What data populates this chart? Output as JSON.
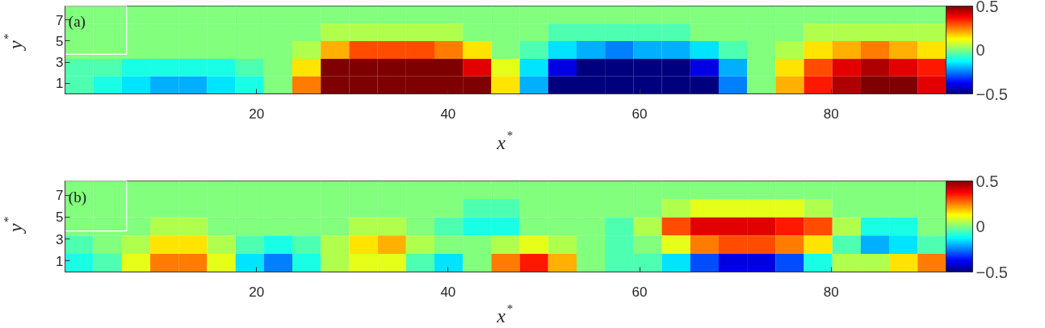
{
  "chart_data": [
    {
      "type": "heatmap",
      "xlabel": "x$^{*}$",
      "ylabel": "y$^{*}$",
      "annotations": [
        "(a)"
      ],
      "xlim": [
        0,
        92
      ],
      "ylim": [
        0,
        8.3
      ],
      "xticks": [
        20,
        40,
        60,
        80
      ],
      "yticks": [
        1,
        3,
        5,
        7
      ],
      "clim": [
        -0.5,
        0.5
      ],
      "cticks": [
        -0.5,
        0,
        0.5
      ],
      "grid": false,
      "cells": [
        [
          0,
          0,
          0,
          0,
          0,
          0,
          0,
          0,
          0,
          0,
          0,
          0,
          0,
          0,
          0,
          0,
          0,
          0,
          0,
          0,
          0,
          0,
          0,
          0,
          0,
          0,
          0,
          0,
          0,
          0,
          0
        ],
        [
          0,
          0,
          0,
          0,
          0,
          0,
          0,
          0,
          0,
          0.05,
          0.05,
          0.05,
          0.05,
          0.05,
          0,
          0,
          0,
          -0.05,
          -0.05,
          -0.05,
          -0.05,
          -0.05,
          0,
          0,
          0,
          0,
          0.05,
          0.05,
          0.05,
          0.05,
          0.05
        ],
        [
          0,
          0,
          0,
          0,
          0,
          0,
          0,
          0,
          0.05,
          0.2,
          0.3,
          0.3,
          0.3,
          0.25,
          0.15,
          0,
          -0.05,
          -0.15,
          -0.2,
          -0.25,
          -0.2,
          -0.2,
          -0.15,
          -0.05,
          0,
          0.05,
          0.15,
          0.2,
          0.25,
          0.2,
          0.15
        ],
        [
          -0.05,
          -0.05,
          -0.1,
          -0.1,
          -0.1,
          -0.1,
          -0.05,
          0,
          0.15,
          0.5,
          0.6,
          0.65,
          0.6,
          0.55,
          0.4,
          0.1,
          -0.15,
          -0.4,
          -0.55,
          -0.6,
          -0.55,
          -0.5,
          -0.4,
          -0.2,
          0,
          0.15,
          0.3,
          0.4,
          0.45,
          0.4,
          0.35
        ],
        [
          -0.05,
          -0.1,
          -0.15,
          -0.2,
          -0.2,
          -0.15,
          -0.1,
          0,
          0.25,
          0.6,
          0.7,
          0.7,
          0.7,
          0.7,
          0.5,
          0.15,
          -0.2,
          -0.5,
          -0.65,
          -0.65,
          -0.65,
          -0.6,
          -0.5,
          -0.25,
          0,
          0.2,
          0.35,
          0.45,
          0.5,
          0.5,
          0.4
        ]
      ]
    },
    {
      "type": "heatmap",
      "xlabel": "x$^{*}$",
      "ylabel": "y$^{*}$",
      "annotations": [
        "(b)"
      ],
      "xlim": [
        0,
        92
      ],
      "ylim": [
        0,
        8.3
      ],
      "xticks": [
        20,
        40,
        60,
        80
      ],
      "yticks": [
        1,
        3,
        5,
        7
      ],
      "clim": [
        -0.5,
        0.5
      ],
      "cticks": [
        -0.5,
        0,
        0.5
      ],
      "grid": false,
      "cells": [
        [
          0,
          0,
          0,
          0,
          0,
          0,
          0,
          0,
          0,
          0,
          0,
          0,
          0,
          0,
          0,
          0,
          0,
          0,
          0,
          0,
          0,
          0,
          0,
          0,
          0,
          0,
          0,
          0,
          0,
          0,
          0
        ],
        [
          0,
          0,
          0,
          0,
          0,
          0,
          0,
          0,
          0,
          0,
          0,
          0,
          0,
          0,
          -0.05,
          -0.05,
          0,
          0,
          0,
          0,
          0,
          0.05,
          0.1,
          0.1,
          0.1,
          0.1,
          0.05,
          0,
          0,
          0,
          0
        ],
        [
          0,
          0,
          0,
          0.05,
          0.05,
          0,
          0,
          0,
          0,
          0,
          0.05,
          0.05,
          0,
          -0.05,
          -0.1,
          -0.1,
          0,
          0,
          0,
          -0.05,
          0.05,
          0.3,
          0.4,
          0.4,
          0.4,
          0.35,
          0.3,
          0.05,
          -0.1,
          -0.1,
          0
        ],
        [
          -0.05,
          0,
          0.05,
          0.15,
          0.15,
          0.05,
          -0.05,
          -0.1,
          -0.05,
          0.05,
          0.15,
          0.2,
          0.05,
          0,
          0,
          0.05,
          0.1,
          0.05,
          0,
          -0.05,
          0,
          0.1,
          0.25,
          0.3,
          0.3,
          0.25,
          0.15,
          -0.05,
          -0.2,
          -0.15,
          -0.05
        ],
        [
          -0.1,
          -0.05,
          0.1,
          0.25,
          0.25,
          0.1,
          -0.15,
          -0.25,
          -0.1,
          0.05,
          0.1,
          0.1,
          -0.05,
          -0.15,
          0,
          0.25,
          0.35,
          0.2,
          0,
          -0.05,
          -0.05,
          -0.15,
          -0.3,
          -0.4,
          -0.4,
          -0.3,
          -0.1,
          0.05,
          0.05,
          0.15,
          0.25
        ]
      ]
    }
  ]
}
